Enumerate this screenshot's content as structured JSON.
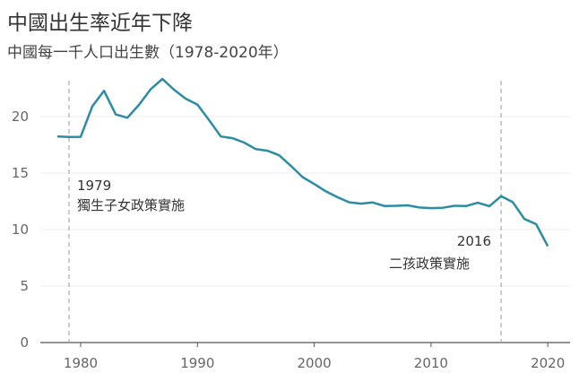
{
  "chart_data": {
    "type": "line",
    "title": "中國出生率近年下降",
    "subtitle": "中國每一千人口出生數（1978-2020年）",
    "xlabel": "",
    "ylabel": "",
    "xlim": [
      1977,
      2022
    ],
    "ylim": [
      0,
      24
    ],
    "xticks": [
      1980,
      1990,
      2000,
      2010,
      2020
    ],
    "yticks": [
      0,
      5,
      10,
      15,
      20
    ],
    "grid": true,
    "color": "#2b8ca3",
    "x": [
      1978,
      1979,
      1980,
      1981,
      1982,
      1983,
      1984,
      1985,
      1986,
      1987,
      1988,
      1989,
      1990,
      1991,
      1992,
      1993,
      1994,
      1995,
      1996,
      1997,
      1998,
      1999,
      2000,
      2001,
      2002,
      2003,
      2004,
      2005,
      2006,
      2007,
      2008,
      2009,
      2010,
      2011,
      2012,
      2013,
      2014,
      2015,
      2016,
      2017,
      2018,
      2019,
      2020
    ],
    "values": [
      18.25,
      18.2,
      18.21,
      20.91,
      22.28,
      20.19,
      19.9,
      21.04,
      22.43,
      23.33,
      22.37,
      21.58,
      21.06,
      19.68,
      18.24,
      18.09,
      17.7,
      17.12,
      16.98,
      16.57,
      15.64,
      14.64,
      14.03,
      13.38,
      12.86,
      12.41,
      12.29,
      12.4,
      12.09,
      12.1,
      12.14,
      11.95,
      11.9,
      11.93,
      12.1,
      12.08,
      12.37,
      12.07,
      12.95,
      12.43,
      10.94,
      10.48,
      8.52
    ],
    "annotations": [
      {
        "year": 1979,
        "label": "1979",
        "text": "獨生子女政策實施"
      },
      {
        "year": 2016,
        "label": "2016",
        "text": "二孩政策實施"
      }
    ]
  }
}
